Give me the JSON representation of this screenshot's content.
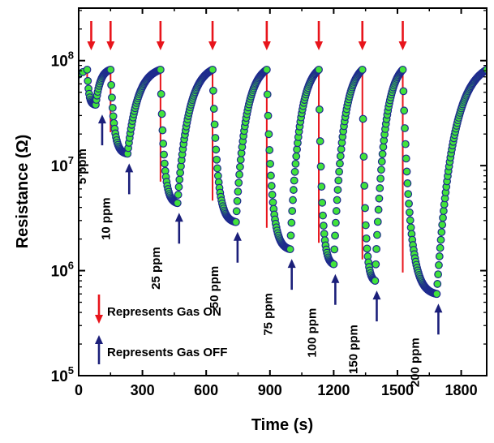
{
  "chart_data": {
    "type": "scatter",
    "xlabel": "Time (s)",
    "ylabel": "Resistance (Ω)",
    "xlim": [
      0,
      1920
    ],
    "ylim_log10": [
      5,
      8.5
    ],
    "y_scale": "log",
    "x_ticks": [
      0,
      300,
      600,
      900,
      1200,
      1500,
      1800
    ],
    "x_tick_labels": [
      "0",
      "300",
      "600",
      "900",
      "1200",
      "1500",
      "1800"
    ],
    "y_ticks": [
      {
        "base": "10",
        "exp": "5",
        "value": 100000
      },
      {
        "base": "10",
        "exp": "6",
        "value": 1000000
      },
      {
        "base": "10",
        "exp": "7",
        "value": 10000000
      },
      {
        "base": "10",
        "exp": "8",
        "value": 100000000
      }
    ],
    "grid": false,
    "colors": {
      "gas_on_arrow": "#e8141b",
      "gas_off_arrow": "#1b1f7a",
      "marker_fill": "#41e33b",
      "marker_edge": "#1e2a8e",
      "gas_on_line": "#e8141b"
    },
    "cycles": [
      {
        "label": "5 ppm",
        "on": 40,
        "off": 80,
        "recover_end": 150,
        "r_min": 38000000
      },
      {
        "label": "10 ppm",
        "on": 150,
        "off": 230,
        "recover_end": 385,
        "r_min": 13000000
      },
      {
        "label": "25 ppm",
        "on": 385,
        "off": 465,
        "recover_end": 630,
        "r_min": 4400000
      },
      {
        "label": "50 ppm",
        "on": 630,
        "off": 740,
        "recover_end": 885,
        "r_min": 2900000
      },
      {
        "label": "75 ppm",
        "on": 885,
        "off": 995,
        "recover_end": 1130,
        "r_min": 1600000
      },
      {
        "label": "100 ppm",
        "on": 1130,
        "off": 1200,
        "recover_end": 1335,
        "r_min": 1150000
      },
      {
        "label": "150 ppm",
        "on": 1335,
        "off": 1395,
        "recover_end": 1525,
        "r_min": 800000
      },
      {
        "label": "200 ppm",
        "on": 1525,
        "off": 1685,
        "recover_end": 1920,
        "r_min": 600000
      }
    ],
    "baseline_resistance": 82000000,
    "legend": [
      {
        "label": "Represents Gas ON",
        "kind": "on"
      },
      {
        "label": "Represents Gas OFF",
        "kind": "off"
      }
    ],
    "legend_position": "bottom-left"
  }
}
